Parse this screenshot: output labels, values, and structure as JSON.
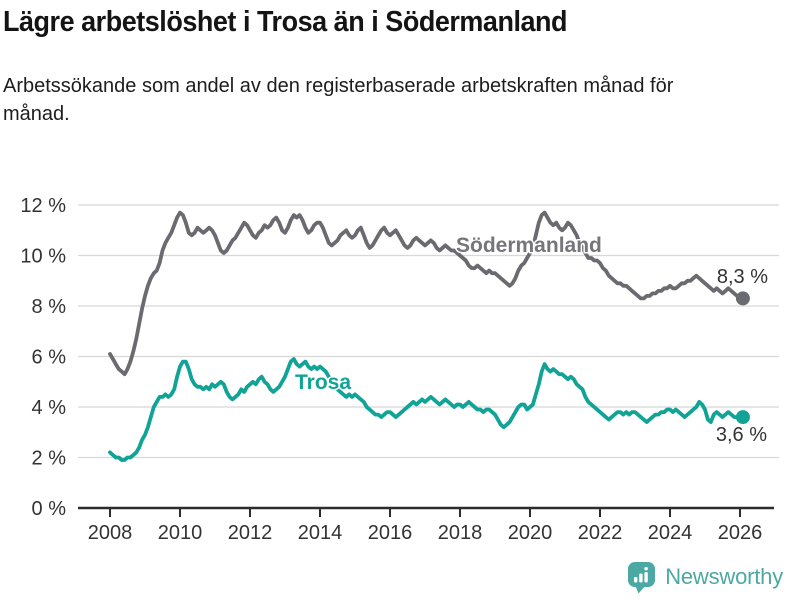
{
  "header": {
    "title": "Lägre arbetslöshet i Trosa än i Södermanland",
    "subtitle": "Arbetssökande som andel av den registerbaserade arbetskraften månad för månad."
  },
  "footer": {
    "brand": "Newsworthy"
  },
  "colors": {
    "sodermanland_line": "#6A6A71",
    "trosa_line": "#10A396",
    "grid": "#D8D8D8",
    "axis": "#2D2D2D",
    "tick_text": "#333333",
    "logo_teal": "#4BA8A3"
  },
  "chart_data": {
    "type": "line",
    "title": "Lägre arbetslöshet i Trosa än i Södermanland",
    "subtitle": "Arbetssökande som andel av den registerbaserade arbetskraften månad för månad.",
    "x_unit": "month",
    "x_start": "2008-01",
    "x_end": "2026-02",
    "xlim": [
      2007.1,
      2027.1
    ],
    "ylim": [
      0,
      12
    ],
    "grid": true,
    "legend_position": "inline-labels",
    "y_ticks": [
      0,
      2,
      4,
      6,
      8,
      10,
      12
    ],
    "y_tick_labels": [
      "0 %",
      "2 %",
      "4 %",
      "6 %",
      "8 %",
      "10 %",
      "12 %"
    ],
    "x_tick_years": [
      2008,
      2010,
      2012,
      2014,
      2016,
      2018,
      2020,
      2022,
      2024,
      2026
    ],
    "x_tick_labels": [
      "2008",
      "2010",
      "2012",
      "2014",
      "2016",
      "2018",
      "2020",
      "2022",
      "2024",
      "2026"
    ],
    "series": [
      {
        "name": "Södermanland",
        "color": "#6A6A71",
        "end_label": "8,3 %",
        "last_value": 8.3,
        "values": [
          6.1,
          5.9,
          5.7,
          5.5,
          5.4,
          5.3,
          5.5,
          5.8,
          6.2,
          6.7,
          7.3,
          7.9,
          8.4,
          8.8,
          9.1,
          9.3,
          9.4,
          9.7,
          10.2,
          10.5,
          10.7,
          10.9,
          11.2,
          11.5,
          11.7,
          11.6,
          11.3,
          10.9,
          10.8,
          10.9,
          11.1,
          11.0,
          10.9,
          11.0,
          11.1,
          11.0,
          10.8,
          10.5,
          10.2,
          10.1,
          10.2,
          10.4,
          10.6,
          10.7,
          10.9,
          11.1,
          11.3,
          11.2,
          11.0,
          10.8,
          10.7,
          10.9,
          11.0,
          11.2,
          11.1,
          11.2,
          11.4,
          11.5,
          11.3,
          11.0,
          10.9,
          11.1,
          11.4,
          11.6,
          11.5,
          11.6,
          11.4,
          11.1,
          10.9,
          11.0,
          11.2,
          11.3,
          11.3,
          11.1,
          10.8,
          10.5,
          10.4,
          10.5,
          10.6,
          10.8,
          10.9,
          11.0,
          10.8,
          10.7,
          10.8,
          11.0,
          11.1,
          10.8,
          10.5,
          10.3,
          10.4,
          10.6,
          10.8,
          11.0,
          11.1,
          10.9,
          10.8,
          10.9,
          11.0,
          10.8,
          10.6,
          10.4,
          10.3,
          10.4,
          10.6,
          10.7,
          10.6,
          10.5,
          10.4,
          10.5,
          10.6,
          10.5,
          10.3,
          10.2,
          10.3,
          10.4,
          10.3,
          10.2,
          10.2,
          10.1,
          10.0,
          9.9,
          9.8,
          9.6,
          9.5,
          9.5,
          9.6,
          9.5,
          9.4,
          9.3,
          9.4,
          9.3,
          9.3,
          9.2,
          9.1,
          9.0,
          8.9,
          8.8,
          8.9,
          9.1,
          9.4,
          9.6,
          9.7,
          9.9,
          10.1,
          10.3,
          10.8,
          11.3,
          11.6,
          11.7,
          11.5,
          11.3,
          11.2,
          11.3,
          11.1,
          11.0,
          11.1,
          11.3,
          11.2,
          11.0,
          10.8,
          10.5,
          10.3,
          10.1,
          9.9,
          9.9,
          9.8,
          9.8,
          9.7,
          9.5,
          9.4,
          9.2,
          9.1,
          9.0,
          8.9,
          8.9,
          8.8,
          8.8,
          8.7,
          8.6,
          8.5,
          8.4,
          8.3,
          8.3,
          8.4,
          8.4,
          8.5,
          8.5,
          8.6,
          8.6,
          8.7,
          8.7,
          8.8,
          8.7,
          8.7,
          8.8,
          8.9,
          8.9,
          9.0,
          9.0,
          9.1,
          9.2,
          9.1,
          9.0,
          8.9,
          8.8,
          8.7,
          8.6,
          8.7,
          8.6,
          8.5,
          8.6,
          8.7,
          8.6,
          8.5,
          8.4,
          8.4,
          8.3
        ]
      },
      {
        "name": "Trosa",
        "color": "#10A396",
        "end_label": "3,6 %",
        "last_value": 3.6,
        "values": [
          2.2,
          2.1,
          2.0,
          2.0,
          1.9,
          1.9,
          2.0,
          2.0,
          2.1,
          2.2,
          2.4,
          2.7,
          2.9,
          3.2,
          3.6,
          4.0,
          4.2,
          4.4,
          4.4,
          4.5,
          4.4,
          4.5,
          4.7,
          5.2,
          5.6,
          5.8,
          5.8,
          5.5,
          5.1,
          4.9,
          4.8,
          4.8,
          4.7,
          4.8,
          4.7,
          4.9,
          4.8,
          4.9,
          5.0,
          4.9,
          4.6,
          4.4,
          4.3,
          4.4,
          4.5,
          4.7,
          4.6,
          4.8,
          4.9,
          5.0,
          4.9,
          5.1,
          5.2,
          5.0,
          4.9,
          4.7,
          4.6,
          4.7,
          4.8,
          5.0,
          5.2,
          5.5,
          5.8,
          5.9,
          5.7,
          5.6,
          5.7,
          5.8,
          5.6,
          5.5,
          5.6,
          5.5,
          5.6,
          5.5,
          5.4,
          5.2,
          5.0,
          4.8,
          4.7,
          4.6,
          4.5,
          4.4,
          4.5,
          4.4,
          4.5,
          4.4,
          4.3,
          4.2,
          4.0,
          3.9,
          3.8,
          3.7,
          3.7,
          3.6,
          3.7,
          3.8,
          3.8,
          3.7,
          3.6,
          3.7,
          3.8,
          3.9,
          4.0,
          4.1,
          4.2,
          4.1,
          4.2,
          4.3,
          4.2,
          4.3,
          4.4,
          4.3,
          4.2,
          4.1,
          4.2,
          4.3,
          4.2,
          4.1,
          4.0,
          4.1,
          4.1,
          4.0,
          4.1,
          4.2,
          4.1,
          4.0,
          3.9,
          3.9,
          3.8,
          3.9,
          3.9,
          3.8,
          3.7,
          3.5,
          3.3,
          3.2,
          3.3,
          3.4,
          3.6,
          3.8,
          4.0,
          4.1,
          4.1,
          3.9,
          4.0,
          4.1,
          4.5,
          4.9,
          5.4,
          5.7,
          5.5,
          5.4,
          5.5,
          5.4,
          5.3,
          5.3,
          5.2,
          5.1,
          5.2,
          5.1,
          4.9,
          4.8,
          4.7,
          4.4,
          4.2,
          4.1,
          4.0,
          3.9,
          3.8,
          3.7,
          3.6,
          3.5,
          3.6,
          3.7,
          3.8,
          3.8,
          3.7,
          3.8,
          3.7,
          3.8,
          3.8,
          3.7,
          3.6,
          3.5,
          3.4,
          3.5,
          3.6,
          3.7,
          3.7,
          3.8,
          3.8,
          3.9,
          3.9,
          3.8,
          3.9,
          3.8,
          3.7,
          3.6,
          3.7,
          3.8,
          3.9,
          4.0,
          4.2,
          4.1,
          3.9,
          3.5,
          3.4,
          3.7,
          3.8,
          3.7,
          3.6,
          3.7,
          3.8,
          3.7,
          3.6,
          3.6,
          3.6,
          3.6
        ]
      }
    ]
  }
}
